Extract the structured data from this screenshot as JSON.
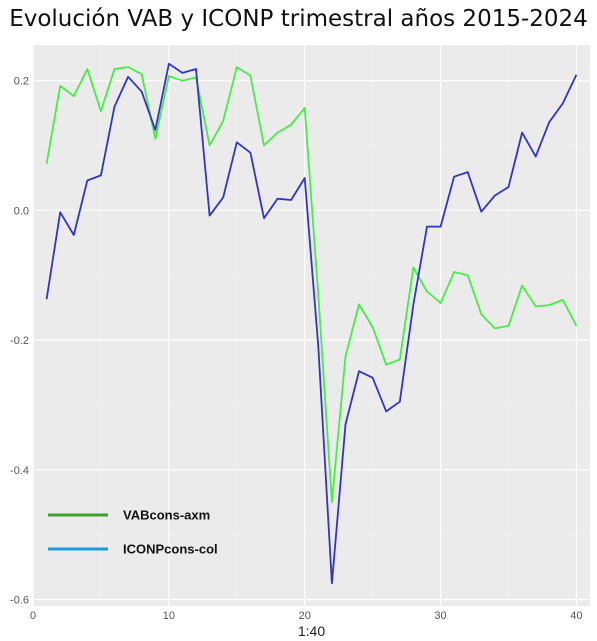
{
  "chart_data": {
    "type": "line",
    "title": "Evolución VAB y ICONP trimestral años 2015-2024",
    "xlabel": "1:40",
    "ylabel": "",
    "xlim": [
      0,
      41
    ],
    "ylim": [
      -0.61,
      0.255
    ],
    "x_ticks": [
      0,
      10,
      20,
      30,
      40
    ],
    "y_ticks": [
      0.2,
      0.0,
      -0.2,
      -0.4,
      -0.6
    ],
    "y_tick_labels": [
      "0.2",
      "0.0",
      "-0.2",
      "-0.4",
      "-0.6"
    ],
    "grid": true,
    "legend_position": "bottom-left",
    "x": [
      1,
      2,
      3,
      4,
      5,
      6,
      7,
      8,
      9,
      10,
      11,
      12,
      13,
      14,
      15,
      16,
      17,
      18,
      19,
      20,
      21,
      22,
      23,
      24,
      25,
      26,
      27,
      28,
      29,
      30,
      31,
      32,
      33,
      34,
      35,
      36,
      37,
      38,
      39,
      40
    ],
    "series": [
      {
        "name": "VABcons-axm",
        "line_color": "#44ee44",
        "legend_color": "#3aa02a",
        "values": [
          0.072,
          0.192,
          0.176,
          0.218,
          0.153,
          0.218,
          0.221,
          0.21,
          0.11,
          0.207,
          0.2,
          0.205,
          0.1,
          0.138,
          0.221,
          0.208,
          0.1,
          0.12,
          0.132,
          0.158,
          -0.13,
          -0.45,
          -0.225,
          -0.145,
          -0.18,
          -0.238,
          -0.23,
          -0.088,
          -0.125,
          -0.143,
          -0.095,
          -0.1,
          -0.16,
          -0.182,
          -0.178,
          -0.116,
          -0.148,
          -0.146,
          -0.138,
          -0.178
        ]
      },
      {
        "name": "ICONPcons-col",
        "line_color": "#3333cc",
        "legend_color": "#1d9bd8",
        "values": [
          -0.137,
          -0.003,
          -0.038,
          0.046,
          0.054,
          0.16,
          0.206,
          0.183,
          0.124,
          0.226,
          0.212,
          0.218,
          -0.008,
          0.02,
          0.105,
          0.089,
          -0.012,
          0.018,
          0.016,
          0.05,
          -0.21,
          -0.575,
          -0.33,
          -0.248,
          -0.258,
          -0.31,
          -0.295,
          -0.145,
          -0.025,
          -0.025,
          0.052,
          0.059,
          -0.002,
          0.023,
          0.036,
          0.12,
          0.083,
          0.136,
          0.165,
          0.209
        ]
      }
    ]
  },
  "colors": {
    "panel_bg": "#ebebeb",
    "grid_major": "#ffffff",
    "grid_minor": "#f4f4f4"
  }
}
